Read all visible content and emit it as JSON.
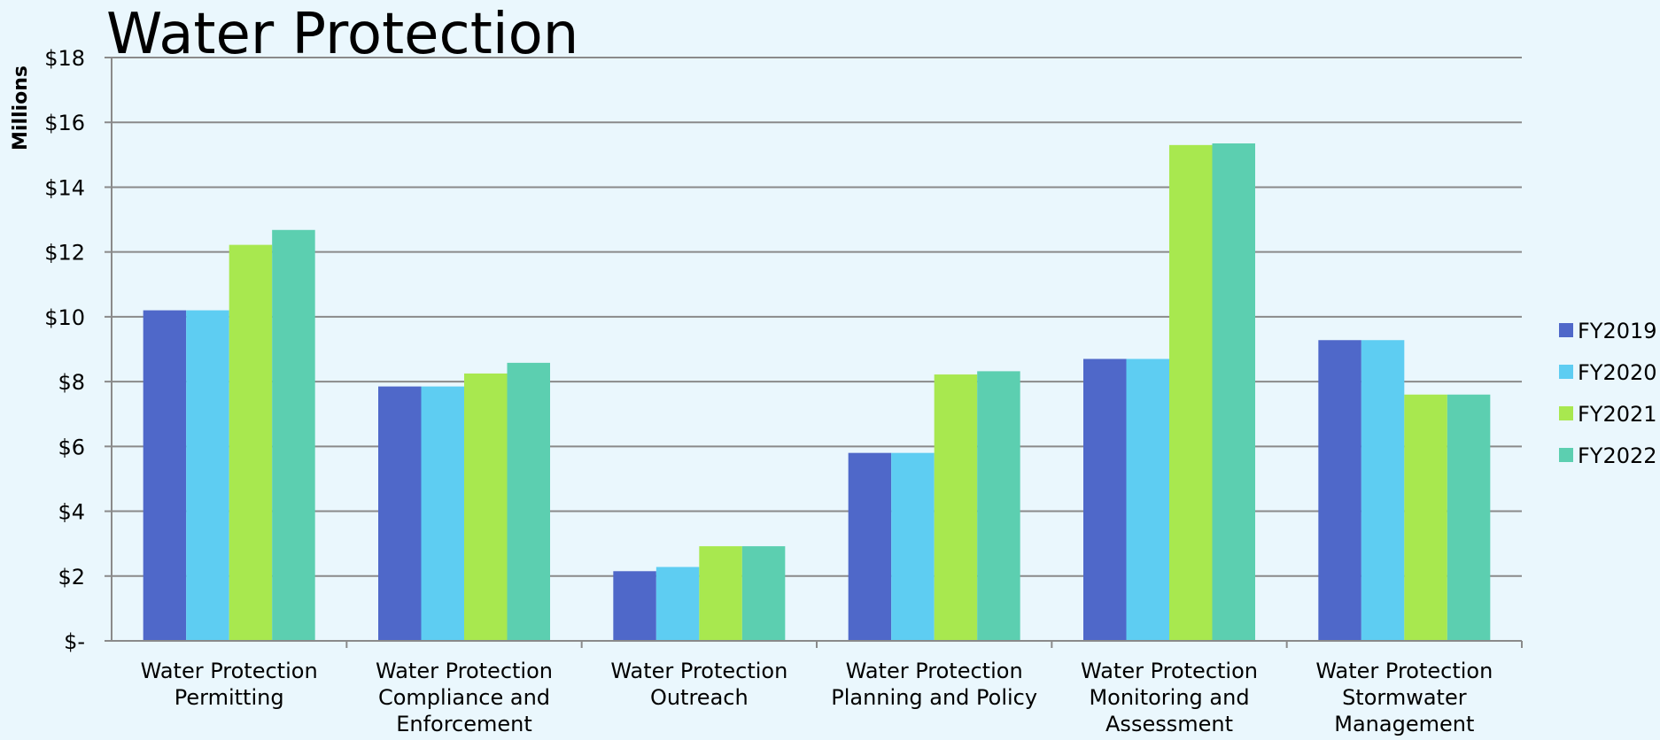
{
  "chart_data": {
    "type": "bar",
    "title": "Water Protection",
    "ylabel": "Millions",
    "xlabel": "",
    "ylim": [
      0,
      18
    ],
    "yticks": [
      {
        "value": 0,
        "label": "$-"
      },
      {
        "value": 2,
        "label": "$2"
      },
      {
        "value": 4,
        "label": "$4"
      },
      {
        "value": 6,
        "label": "$6"
      },
      {
        "value": 8,
        "label": "$8"
      },
      {
        "value": 10,
        "label": "$10"
      },
      {
        "value": 12,
        "label": "$12"
      },
      {
        "value": 14,
        "label": "$14"
      },
      {
        "value": 16,
        "label": "$16"
      },
      {
        "value": 18,
        "label": "$18"
      }
    ],
    "categories": [
      [
        "Water Protection",
        "Permitting"
      ],
      [
        "Water Protection",
        "Compliance and",
        "Enforcement"
      ],
      [
        "Water Protection",
        "Outreach"
      ],
      [
        "Water Protection",
        "Planning and Policy"
      ],
      [
        "Water Protection",
        "Monitoring and",
        "Assessment"
      ],
      [
        "Water Protection",
        "Stormwater",
        "Management"
      ]
    ],
    "series": [
      {
        "name": "FY2019",
        "color": "#4f68c9",
        "values": [
          10.2,
          7.85,
          2.15,
          5.8,
          8.7,
          9.28
        ]
      },
      {
        "name": "FY2020",
        "color": "#5ecdf2",
        "values": [
          10.2,
          7.85,
          2.28,
          5.8,
          8.7,
          9.28
        ]
      },
      {
        "name": "FY2021",
        "color": "#a8e84f",
        "values": [
          12.22,
          8.25,
          2.92,
          8.22,
          15.3,
          7.6
        ]
      },
      {
        "name": "FY2022",
        "color": "#5ccfb0",
        "values": [
          12.68,
          8.58,
          2.92,
          8.32,
          15.35,
          7.6
        ]
      }
    ],
    "grid": true,
    "legend_position": "right"
  }
}
